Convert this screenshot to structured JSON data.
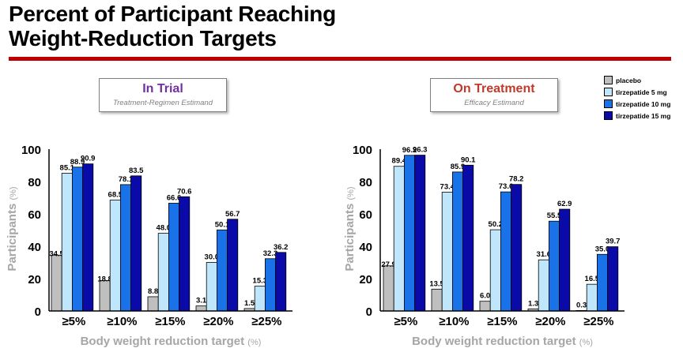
{
  "title": {
    "line1": "Percent of Participant Reaching",
    "line2": "Weight-Reduction Targets"
  },
  "colors": {
    "rule": "#c00000",
    "in_trial": "#7030a0",
    "on_treatment": "#c0392b"
  },
  "estimands": {
    "in_trial": {
      "title": "In Trial",
      "subtitle": "Treatment-Regimen Estimand"
    },
    "on_treatment": {
      "title": "On Treatment",
      "subtitle": "Efficacy Estimand"
    }
  },
  "legend": [
    {
      "label": "placebo",
      "color": "#bfbfbf"
    },
    {
      "label": "tirzepatide 5 mg",
      "color": "#bfe6fb"
    },
    {
      "label": "tirzepatide 10 mg",
      "color": "#1a72e8"
    },
    {
      "label": "tirzepatide 15 mg",
      "color": "#0a0aa8"
    }
  ],
  "chart_data": [
    {
      "type": "bar",
      "categories": [
        "≥5%",
        "≥10%",
        "≥15%",
        "≥20%",
        "≥25%"
      ],
      "series": [
        {
          "name": "placebo",
          "values": [
            34.5,
            18.8,
            8.8,
            3.1,
            1.5
          ]
        },
        {
          "name": "tirzepatide 5 mg",
          "values": [
            85.1,
            68.5,
            48.0,
            30.0,
            15.3
          ]
        },
        {
          "name": "tirzepatide 10 mg",
          "values": [
            88.9,
            78.1,
            66.6,
            50.1,
            32.3
          ]
        },
        {
          "name": "tirzepatide 15 mg",
          "values": [
            90.9,
            83.5,
            70.6,
            56.7,
            36.2
          ]
        }
      ],
      "value_labels": [
        [
          "34.5",
          "18.8",
          "8.8",
          "3.1",
          "1.5"
        ],
        [
          "85.1",
          "68.5",
          "48.0",
          "30.0",
          "15.3"
        ],
        [
          "88.9",
          "78.1",
          "66.6",
          "50.1",
          "32.3"
        ],
        [
          "90.9",
          "83.5",
          "70.6",
          "56.7",
          "36.2"
        ]
      ],
      "xlabel": "Body weight reduction target",
      "xlabel_unit": "(%)",
      "ylabel": "Participants",
      "ylabel_unit": "(%)",
      "ylim": [
        0,
        100
      ],
      "yticks": [
        "0",
        "20",
        "40",
        "60",
        "80",
        "100"
      ],
      "grid": false
    },
    {
      "type": "bar",
      "categories": [
        "≥5%",
        "≥10%",
        "≥15%",
        "≥20%",
        "≥25%"
      ],
      "series": [
        {
          "name": "placebo",
          "values": [
            27.9,
            13.5,
            6.0,
            1.3,
            0.3
          ]
        },
        {
          "name": "tirzepatide 5 mg",
          "values": [
            89.4,
            73.4,
            50.2,
            31.6,
            16.5
          ]
        },
        {
          "name": "tirzepatide 10 mg",
          "values": [
            96.2,
            85.9,
            73.6,
            55.5,
            35.0
          ]
        },
        {
          "name": "tirzepatide 15 mg",
          "values": [
            96.3,
            90.1,
            78.2,
            62.9,
            39.7
          ]
        }
      ],
      "value_labels": [
        [
          "27.9",
          "13.5",
          "6.0",
          "1.3",
          "0.3"
        ],
        [
          "89.4",
          "73.4",
          "50.2",
          "31.6",
          "16.5"
        ],
        [
          "96.2",
          "85.9",
          "73.6",
          "55.5",
          "35.0"
        ],
        [
          "96.3",
          "90.1",
          "78.2",
          "62.9",
          "39.7"
        ]
      ],
      "xlabel": "Body weight reduction target",
      "xlabel_unit": "(%)",
      "ylabel": "Participants",
      "ylabel_unit": "(%)",
      "ylim": [
        0,
        100
      ],
      "yticks": [
        "0",
        "20",
        "40",
        "60",
        "80",
        "100"
      ],
      "grid": false
    }
  ]
}
